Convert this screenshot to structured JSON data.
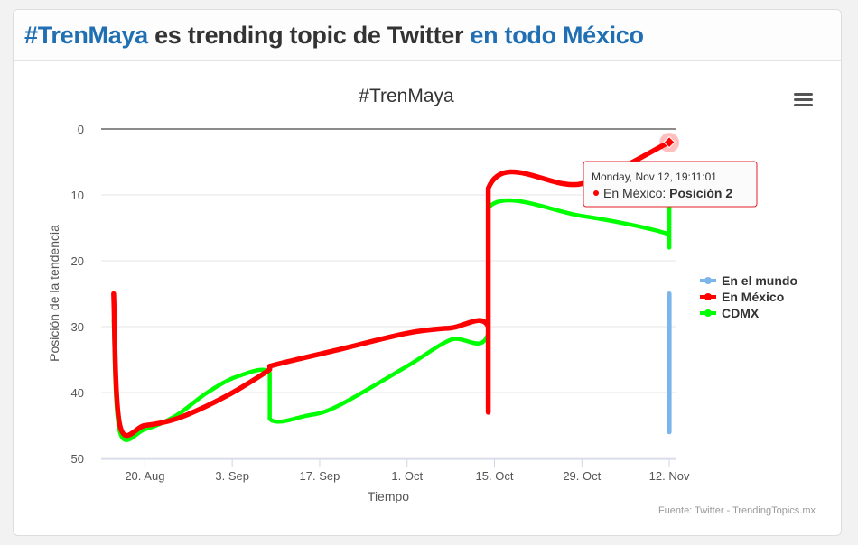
{
  "header": {
    "title_part1": "#TrenMaya",
    "title_part2": " es trending topic de Twitter ",
    "title_part3": "en todo México",
    "highlight_color": "#1f6fb2"
  },
  "menu_icon": "hamburger-menu-icon",
  "credits": "Fuente: Twitter - TrendingTopics.mx",
  "tooltip": {
    "date": "Monday, Nov 12, 19:11:01",
    "series": "En México",
    "separator": ": ",
    "value_label": "Posición 2"
  },
  "chart_data": {
    "type": "line",
    "title": "#TrenMaya",
    "xlabel": "Tiempo",
    "ylabel": "Posición de la tendencia",
    "x_range": [
      "2018-08-13",
      "2018-11-13"
    ],
    "y_range": [
      0,
      50
    ],
    "y_reversed": true,
    "y_ticks": [
      0,
      10,
      20,
      30,
      40,
      50
    ],
    "x_ticks": [
      {
        "date": "2018-08-20",
        "label": "20. Aug"
      },
      {
        "date": "2018-09-03",
        "label": "3. Sep"
      },
      {
        "date": "2018-09-17",
        "label": "17. Sep"
      },
      {
        "date": "2018-10-01",
        "label": "1. Oct"
      },
      {
        "date": "2018-10-15",
        "label": "15. Oct"
      },
      {
        "date": "2018-10-29",
        "label": "29. Oct"
      },
      {
        "date": "2018-11-12",
        "label": "12. Nov"
      }
    ],
    "grid": true,
    "legend_position": "right",
    "series": [
      {
        "name": "En el mundo",
        "color": "#7cb5ec",
        "points": [
          [
            "2018-11-12",
            25
          ],
          [
            "2018-11-12",
            46
          ],
          [
            "2018-11-12",
            39
          ],
          [
            "2018-11-12",
            43
          ]
        ]
      },
      {
        "name": "En México",
        "color": "#ff0000",
        "points": [
          [
            "2018-08-15",
            25
          ],
          [
            "2018-08-16",
            45
          ],
          [
            "2018-08-20",
            45
          ],
          [
            "2018-08-25",
            44
          ],
          [
            "2018-08-30",
            42
          ],
          [
            "2018-09-04",
            39.5
          ],
          [
            "2018-09-09",
            36.5
          ],
          [
            "2018-09-09",
            36
          ],
          [
            "2018-09-20",
            33.5
          ],
          [
            "2018-10-01",
            31
          ],
          [
            "2018-10-08",
            30.2
          ],
          [
            "2018-10-14",
            30
          ],
          [
            "2018-10-14",
            43
          ],
          [
            "2018-10-14",
            9
          ],
          [
            "2018-10-29",
            8.3
          ],
          [
            "2018-11-12",
            2
          ]
        ]
      },
      {
        "name": "CDMX",
        "color": "#00ff00",
        "points": [
          [
            "2018-08-15",
            29
          ],
          [
            "2018-08-16",
            46
          ],
          [
            "2018-08-20",
            45.6
          ],
          [
            "2018-08-25",
            43.5
          ],
          [
            "2018-08-30",
            40
          ],
          [
            "2018-09-04",
            37.5
          ],
          [
            "2018-09-09",
            37
          ],
          [
            "2018-09-09",
            44
          ],
          [
            "2018-09-15",
            43.5
          ],
          [
            "2018-09-20",
            42
          ],
          [
            "2018-10-01",
            36
          ],
          [
            "2018-10-08",
            32
          ],
          [
            "2018-10-14",
            31
          ],
          [
            "2018-10-14",
            12
          ],
          [
            "2018-10-29",
            13.2
          ],
          [
            "2018-11-12",
            16
          ],
          [
            "2018-11-12",
            18
          ],
          [
            "2018-11-12",
            10
          ]
        ]
      }
    ],
    "highlight": {
      "series": "En México",
      "x": "2018-11-12",
      "y": 2
    }
  }
}
